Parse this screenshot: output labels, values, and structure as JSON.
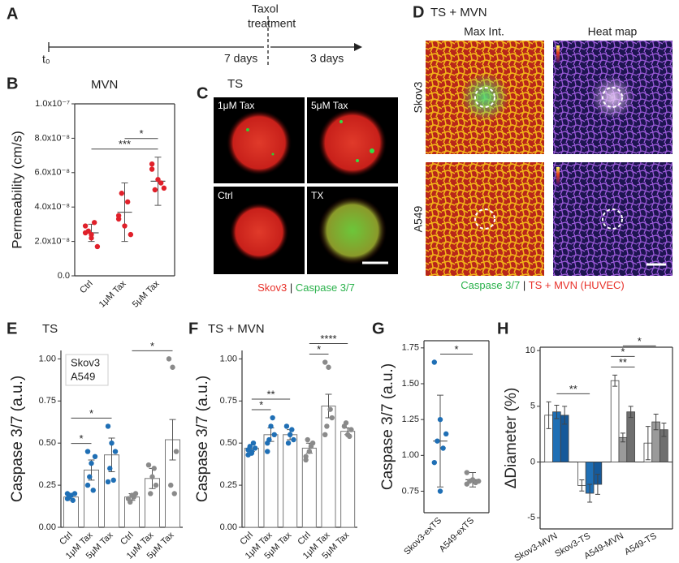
{
  "panel_labels": [
    "A",
    "B",
    "C",
    "D",
    "E",
    "F",
    "G",
    "H"
  ],
  "timeline": {
    "start": "t₀",
    "phase1": "7 days",
    "event": [
      "Taxol",
      "treatment"
    ],
    "phase2": "3 days"
  },
  "ts_images": {
    "title": "TS",
    "labels": [
      "1μM Tax",
      "5μM Tax",
      "Ctrl",
      "TX"
    ],
    "legend": [
      "Skov3",
      "|",
      "Caspase 3/7"
    ]
  },
  "tsmvn_images": {
    "title": "TS + MVN",
    "columns": [
      "Max Int.",
      "Heat map"
    ],
    "rows": [
      "Skov3",
      "A549"
    ],
    "legend": [
      "Caspase 3/7",
      "|",
      "TS + MVN (HUVEC)"
    ]
  },
  "chart_data": [
    {
      "type": "dotplot",
      "title": "MVN",
      "y_label": "Permeability (cm/s)",
      "box": true,
      "categories": [
        "Ctrl",
        "1μM Tax",
        "5μM Tax"
      ],
      "colors": [
        "#e0202a",
        "#e0202a",
        "#e0202a"
      ],
      "points": [
        [
          2.5e-08,
          2.2e-08,
          1.7e-08,
          2.6e-08,
          3.1e-08,
          2.9e-08,
          2.4e-08
        ],
        [
          3.5e-08,
          2.9e-08,
          2.4e-08,
          4.8e-08,
          4.3e-08,
          3.3e-08
        ],
        [
          6.5e-08,
          5.6e-08,
          5.1e-08,
          5e-08,
          5.4e-08,
          6.2e-08
        ]
      ],
      "means": [
        2.5e-08,
        3.7e-08,
        5.5e-08
      ],
      "errors": [
        5e-09,
        1.7e-08,
        1.4e-08
      ],
      "ylim": [
        0,
        1e-07
      ],
      "yticks": [
        {
          "value": 0,
          "label": "0.0"
        },
        {
          "value": 2e-08,
          "label": "2.0x10⁻⁸"
        },
        {
          "value": 4e-08,
          "label": "4.0x10⁻⁸"
        },
        {
          "value": 6e-08,
          "label": "6.0x10⁻⁸"
        },
        {
          "value": 8e-08,
          "label": "8.0x10⁻⁸"
        },
        {
          "value": 1e-07,
          "label": "1.0x10⁻⁷"
        }
      ],
      "significance": [
        {
          "label": "***",
          "categories": [
            0,
            2
          ]
        },
        {
          "label": "*",
          "categories": [
            1,
            2
          ]
        }
      ]
    },
    {
      "type": "bar",
      "title": "TS",
      "y_label": "Caspase 3/7 (a.u.)",
      "box": false,
      "categories": [
        "Ctrl",
        "1μM Tax",
        "5μM Tax",
        "Ctrl",
        "1μM Tax",
        "5μM Tax"
      ],
      "colors": [
        "#1f6fb5",
        "#1f6fb5",
        "#1f6fb5",
        "#8a8a8a",
        "#8a8a8a",
        "#8a8a8a"
      ],
      "legend": [
        {
          "name": "Skov3",
          "color": "#1f6fb5"
        },
        {
          "name": "A549",
          "color": "#8a8a8a"
        }
      ],
      "values": [
        0.18,
        0.34,
        0.43,
        0.18,
        0.29,
        0.52
      ],
      "errors": [
        0.02,
        0.06,
        0.1,
        0.02,
        0.06,
        0.12
      ],
      "points": [
        [
          0.17,
          0.19,
          0.2,
          0.18,
          0.16,
          0.2
        ],
        [
          0.25,
          0.38,
          0.42,
          0.3,
          0.22,
          0.45
        ],
        [
          0.6,
          0.5,
          0.45,
          0.35,
          0.28,
          0.27
        ],
        [
          0.17,
          0.19,
          0.2,
          0.15,
          0.18
        ],
        [
          0.37,
          0.3,
          0.25,
          0.2,
          0.35
        ],
        [
          1.0,
          0.95,
          0.45,
          0.25,
          0.2
        ]
      ],
      "ylim": [
        0,
        1.05
      ],
      "yticks": [
        {
          "value": 0,
          "label": "0.00"
        },
        0.25,
        {
          "value": 0.5,
          "label": "0.50"
        },
        0.75,
        {
          "value": 1,
          "label": "1.00"
        }
      ],
      "significance": [
        {
          "label": "*",
          "categories": [
            0,
            1
          ]
        },
        {
          "label": "*",
          "categories": [
            0,
            2
          ]
        },
        {
          "label": "*",
          "categories": [
            3,
            5
          ]
        }
      ]
    },
    {
      "type": "bar",
      "title": "TS + MVN",
      "y_label": "Caspase 3/7 (a.u.)",
      "box": false,
      "categories": [
        "Ctrl",
        "1μM Tax",
        "5μM Tax",
        "Ctrl",
        "1μM Tax",
        "5μM Tax"
      ],
      "colors": [
        "#1f6fb5",
        "#1f6fb5",
        "#1f6fb5",
        "#8a8a8a",
        "#8a8a8a",
        "#8a8a8a"
      ],
      "values": [
        0.47,
        0.55,
        0.55,
        0.47,
        0.72,
        0.57
      ],
      "errors": [
        0.02,
        0.04,
        0.03,
        0.03,
        0.07,
        0.02
      ],
      "points": [
        [
          0.43,
          0.45,
          0.47,
          0.48,
          0.5,
          0.46,
          0.44
        ],
        [
          0.45,
          0.6,
          0.55,
          0.52,
          0.65,
          0.5
        ],
        [
          0.6,
          0.55,
          0.52,
          0.5,
          0.58
        ],
        [
          0.4,
          0.45,
          0.5,
          0.52,
          0.48,
          0.42
        ],
        [
          0.98,
          0.95,
          0.65,
          0.6,
          0.7,
          0.55
        ],
        [
          0.6,
          0.55,
          0.58,
          0.62,
          0.54
        ]
      ],
      "ylim": [
        0,
        1.05
      ],
      "yticks": [
        {
          "value": 0,
          "label": "0.00"
        },
        0.25,
        {
          "value": 0.5,
          "label": "0.50"
        },
        0.75,
        {
          "value": 1,
          "label": "1.00"
        }
      ],
      "significance": [
        {
          "label": "*",
          "categories": [
            0,
            1
          ]
        },
        {
          "label": "**",
          "categories": [
            0,
            2
          ]
        },
        {
          "label": "*",
          "categories": [
            3,
            4
          ]
        },
        {
          "label": "****",
          "categories": [
            3,
            5
          ]
        }
      ]
    },
    {
      "type": "dotplot",
      "y_label": "Caspase 3/7 (a.u.)",
      "box": true,
      "categories": [
        "Skov3-exTS",
        "A549-exTS"
      ],
      "colors": [
        "#1f6fb5",
        "#8a8a8a"
      ],
      "points": [
        [
          1.65,
          1.25,
          1.15,
          1.1,
          1.05,
          0.95,
          0.75
        ],
        [
          0.88,
          0.83,
          0.82,
          0.82,
          0.81,
          0.8
        ]
      ],
      "means": [
        1.1,
        0.83
      ],
      "errors": [
        0.32,
        0.05
      ],
      "ylim": [
        0.6,
        1.8
      ],
      "yticks": [
        0.75,
        {
          "value": 1,
          "label": "1.00"
        },
        1.25,
        {
          "value": 1.5,
          "label": "1.50"
        },
        1.75
      ],
      "significance": [
        {
          "label": "*",
          "categories": [
            0,
            1
          ]
        }
      ]
    },
    {
      "type": "grouped_bar",
      "y_label": "ΔDiameter (%)",
      "box": true,
      "categories": [
        "Skov3-MVN",
        "Skov3-TS",
        "A549-MVN",
        "A549-TS"
      ],
      "series": [
        {
          "color": "#ffffff",
          "values": [
            4.2,
            -2.1,
            7.3,
            1.7
          ],
          "errors": [
            1.2,
            0.5,
            0.5,
            1.5
          ]
        },
        {
          "colors": [
            "#1f6fb5",
            "#1f6fb5",
            "#9a9a9a",
            "#9a9a9a"
          ],
          "values": [
            4.5,
            -2.8,
            2.2,
            3.6
          ],
          "errors": [
            0.6,
            0.8,
            0.4,
            0.7
          ]
        },
        {
          "colors": [
            "#15599a",
            "#15599a",
            "#6f6f6f",
            "#6f6f6f"
          ],
          "values": [
            4.2,
            -2.0,
            4.5,
            2.9
          ],
          "errors": [
            0.8,
            0.9,
            0.5,
            0.6
          ]
        }
      ],
      "ylim": [
        -6,
        10.3
      ],
      "yticks": [
        -5,
        0,
        5,
        10
      ],
      "significance": [
        {
          "label": "**",
          "categories": [
            0,
            1
          ]
        },
        {
          "label": "**",
          "categories": [
            2,
            2
          ]
        },
        {
          "label": "*",
          "categories": [
            2,
            2
          ]
        },
        {
          "label": "*",
          "categories": [
            2,
            3
          ]
        }
      ]
    }
  ]
}
